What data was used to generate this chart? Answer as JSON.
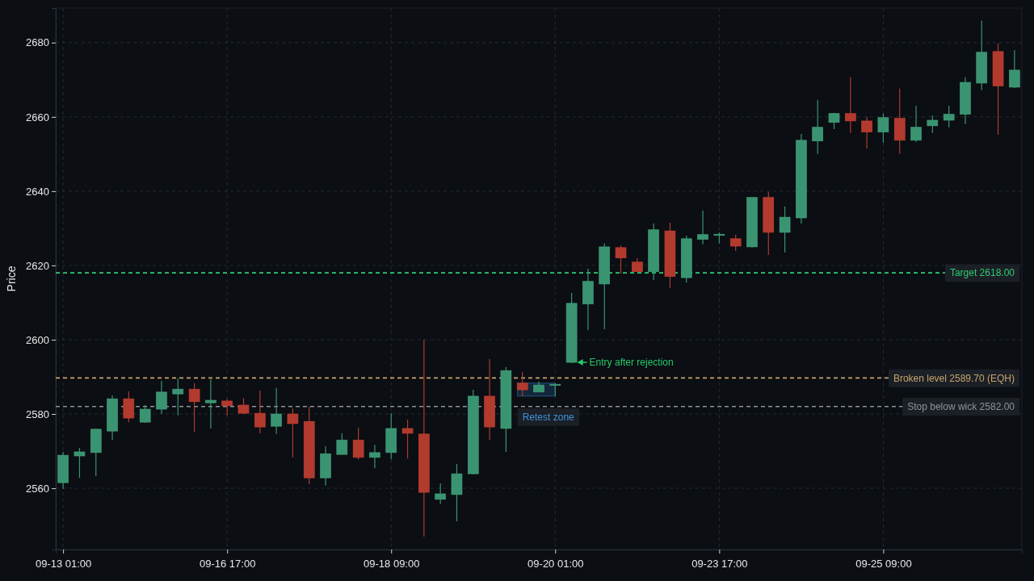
{
  "chart_data": {
    "type": "candlestick",
    "ylabel": "Price",
    "categories": [
      "09-13 01:00",
      null,
      null,
      null,
      null,
      null,
      null,
      null,
      null,
      null,
      "09-16 17:00",
      null,
      null,
      null,
      null,
      null,
      null,
      null,
      null,
      null,
      "09-18 09:00",
      null,
      null,
      null,
      null,
      null,
      null,
      null,
      null,
      null,
      "09-20 01:00",
      null,
      null,
      null,
      null,
      null,
      null,
      null,
      null,
      null,
      "09-23 17:00",
      null,
      null,
      null,
      null,
      null,
      null,
      null,
      null,
      null,
      "09-25 09:00",
      null,
      null,
      null,
      null,
      null,
      null,
      null,
      null
    ],
    "ohlc": [
      [
        2561.5,
        2569.8,
        2559.8,
        2568.9
      ],
      [
        2568.7,
        2570.9,
        2562.8,
        2569.8
      ],
      [
        2569.6,
        2576.1,
        2563.3,
        2575.9
      ],
      [
        2575.4,
        2585.0,
        2573.0,
        2584.1
      ],
      [
        2584.1,
        2586.1,
        2577.8,
        2578.9
      ],
      [
        2577.8,
        2582.4,
        2577.6,
        2581.3
      ],
      [
        2581.3,
        2588.9,
        2580.0,
        2585.9
      ],
      [
        2585.4,
        2589.6,
        2579.6,
        2586.7
      ],
      [
        2586.7,
        2588.3,
        2575.2,
        2583.3
      ],
      [
        2583.0,
        2589.3,
        2576.1,
        2583.7
      ],
      [
        2583.5,
        2584.1,
        2579.6,
        2582.2
      ],
      [
        2582.4,
        2584.3,
        2580.0,
        2580.2
      ],
      [
        2580.2,
        2586.3,
        2574.8,
        2576.5
      ],
      [
        2576.7,
        2587.0,
        2574.6,
        2580.0
      ],
      [
        2580.0,
        2581.5,
        2568.3,
        2577.4
      ],
      [
        2578.0,
        2582.0,
        2561.1,
        2562.8
      ],
      [
        2562.8,
        2571.3,
        2560.7,
        2569.3
      ],
      [
        2569.1,
        2574.8,
        2569.1,
        2573.0
      ],
      [
        2573.0,
        2576.3,
        2567.8,
        2568.3
      ],
      [
        2568.3,
        2571.7,
        2565.4,
        2569.6
      ],
      [
        2569.6,
        2580.2,
        2567.8,
        2576.1
      ],
      [
        2576.1,
        2578.5,
        2568.0,
        2574.8
      ],
      [
        2574.6,
        2600.0,
        2547.0,
        2558.9
      ],
      [
        2557.0,
        2561.3,
        2555.7,
        2558.5
      ],
      [
        2558.3,
        2566.5,
        2551.1,
        2563.9
      ],
      [
        2563.9,
        2586.5,
        2563.7,
        2584.8
      ],
      [
        2584.8,
        2594.8,
        2573.0,
        2576.5
      ],
      [
        2576.1,
        2592.6,
        2569.8,
        2591.7
      ],
      [
        2588.3,
        2591.3,
        2584.8,
        2586.5
      ],
      [
        2585.9,
        2588.7,
        2585.9,
        2587.8
      ],
      [
        2587.8,
        2588.3,
        2584.8,
        2588.0
      ],
      [
        2593.9,
        2612.6,
        2593.7,
        2609.8
      ],
      [
        2609.6,
        2619.1,
        2602.6,
        2615.7
      ],
      [
        2615.0,
        2625.9,
        2602.8,
        2625.0
      ],
      [
        2624.8,
        2625.4,
        2617.8,
        2622.0
      ],
      [
        2620.9,
        2622.0,
        2618.3,
        2618.3
      ],
      [
        2618.3,
        2631.3,
        2616.1,
        2629.6
      ],
      [
        2629.3,
        2631.5,
        2613.9,
        2617.0
      ],
      [
        2616.7,
        2628.0,
        2615.4,
        2627.2
      ],
      [
        2627.0,
        2634.8,
        2625.7,
        2628.3
      ],
      [
        2628.2,
        2628.9,
        2625.9,
        2628.4
      ],
      [
        2627.2,
        2628.3,
        2623.9,
        2625.2
      ],
      [
        2625.0,
        2638.3,
        2624.8,
        2638.3
      ],
      [
        2638.3,
        2639.8,
        2622.8,
        2628.9
      ],
      [
        2628.9,
        2635.9,
        2623.5,
        2633.0
      ],
      [
        2632.8,
        2655.4,
        2631.3,
        2653.7
      ],
      [
        2653.5,
        2664.6,
        2650.0,
        2657.2
      ],
      [
        2658.5,
        2661.1,
        2656.7,
        2660.9
      ],
      [
        2660.9,
        2670.7,
        2655.7,
        2658.9
      ],
      [
        2658.9,
        2660.0,
        2651.5,
        2655.9
      ],
      [
        2655.9,
        2660.9,
        2653.0,
        2659.8
      ],
      [
        2659.6,
        2667.6,
        2650.0,
        2653.7
      ],
      [
        2653.7,
        2663.0,
        2653.3,
        2657.2
      ],
      [
        2657.6,
        2660.4,
        2655.7,
        2659.1
      ],
      [
        2659.1,
        2663.0,
        2657.2,
        2660.7
      ],
      [
        2660.7,
        2670.7,
        2658.0,
        2669.3
      ],
      [
        2669.1,
        2685.9,
        2667.2,
        2677.4
      ],
      [
        2677.6,
        2679.8,
        2655.2,
        2668.3
      ],
      [
        2668.0,
        2678.0,
        2667.8,
        2672.6
      ]
    ],
    "colors": [
      "#3b9471",
      "#3b9471",
      "#3b9471",
      "#3b9471",
      "#b23a2e",
      "#3b9471",
      "#3b9471",
      "#3b9471",
      "#b23a2e",
      "#3b9471",
      "#b23a2e",
      "#b23a2e",
      "#b23a2e",
      "#3b9471",
      "#b23a2e",
      "#b23a2e",
      "#3b9471",
      "#3b9471",
      "#b23a2e",
      "#3b9471",
      "#3b9471",
      "#b23a2e",
      "#b23a2e",
      "#3b9471",
      "#3b9471",
      "#3b9471",
      "#b23a2e",
      "#3b9471",
      "#b23a2e",
      "#3b9471",
      "#3b9471",
      "#3b9471",
      "#3b9471",
      "#3b9471",
      "#b23a2e",
      "#b23a2e",
      "#3b9471",
      "#b23a2e",
      "#3b9471",
      "#3b9471",
      "#3b9471",
      "#b23a2e",
      "#3b9471",
      "#b23a2e",
      "#3b9471",
      "#3b9471",
      "#3b9471",
      "#3b9471",
      "#b23a2e",
      "#b23a2e",
      "#3b9471",
      "#b23a2e",
      "#3b9471",
      "#3b9471",
      "#3b9471",
      "#3b9471",
      "#3b9471",
      "#b23a2e",
      "#3b9471"
    ],
    "ylim": [
      2543.5,
      2689.3
    ],
    "yticks": [
      2560,
      2580,
      2600,
      2620,
      2640,
      2660,
      2680
    ],
    "grid": true,
    "ref_lines": [
      {
        "axis": "y",
        "value": 2618,
        "label": "Target 2618.00",
        "color": "#2ecc71",
        "line_style": "dashed"
      },
      {
        "axis": "y",
        "value": 2589.7,
        "label": "Broken level 2589.70 (EQH)",
        "color": "#c9a46c",
        "line_style": "dashed"
      },
      {
        "axis": "y",
        "value": 2582,
        "label": "Stop below wick 2582.00",
        "color": "#8e939b",
        "line_style": "dashed"
      }
    ],
    "annotations": [
      "Retest zone",
      "Entry after rejection"
    ]
  }
}
